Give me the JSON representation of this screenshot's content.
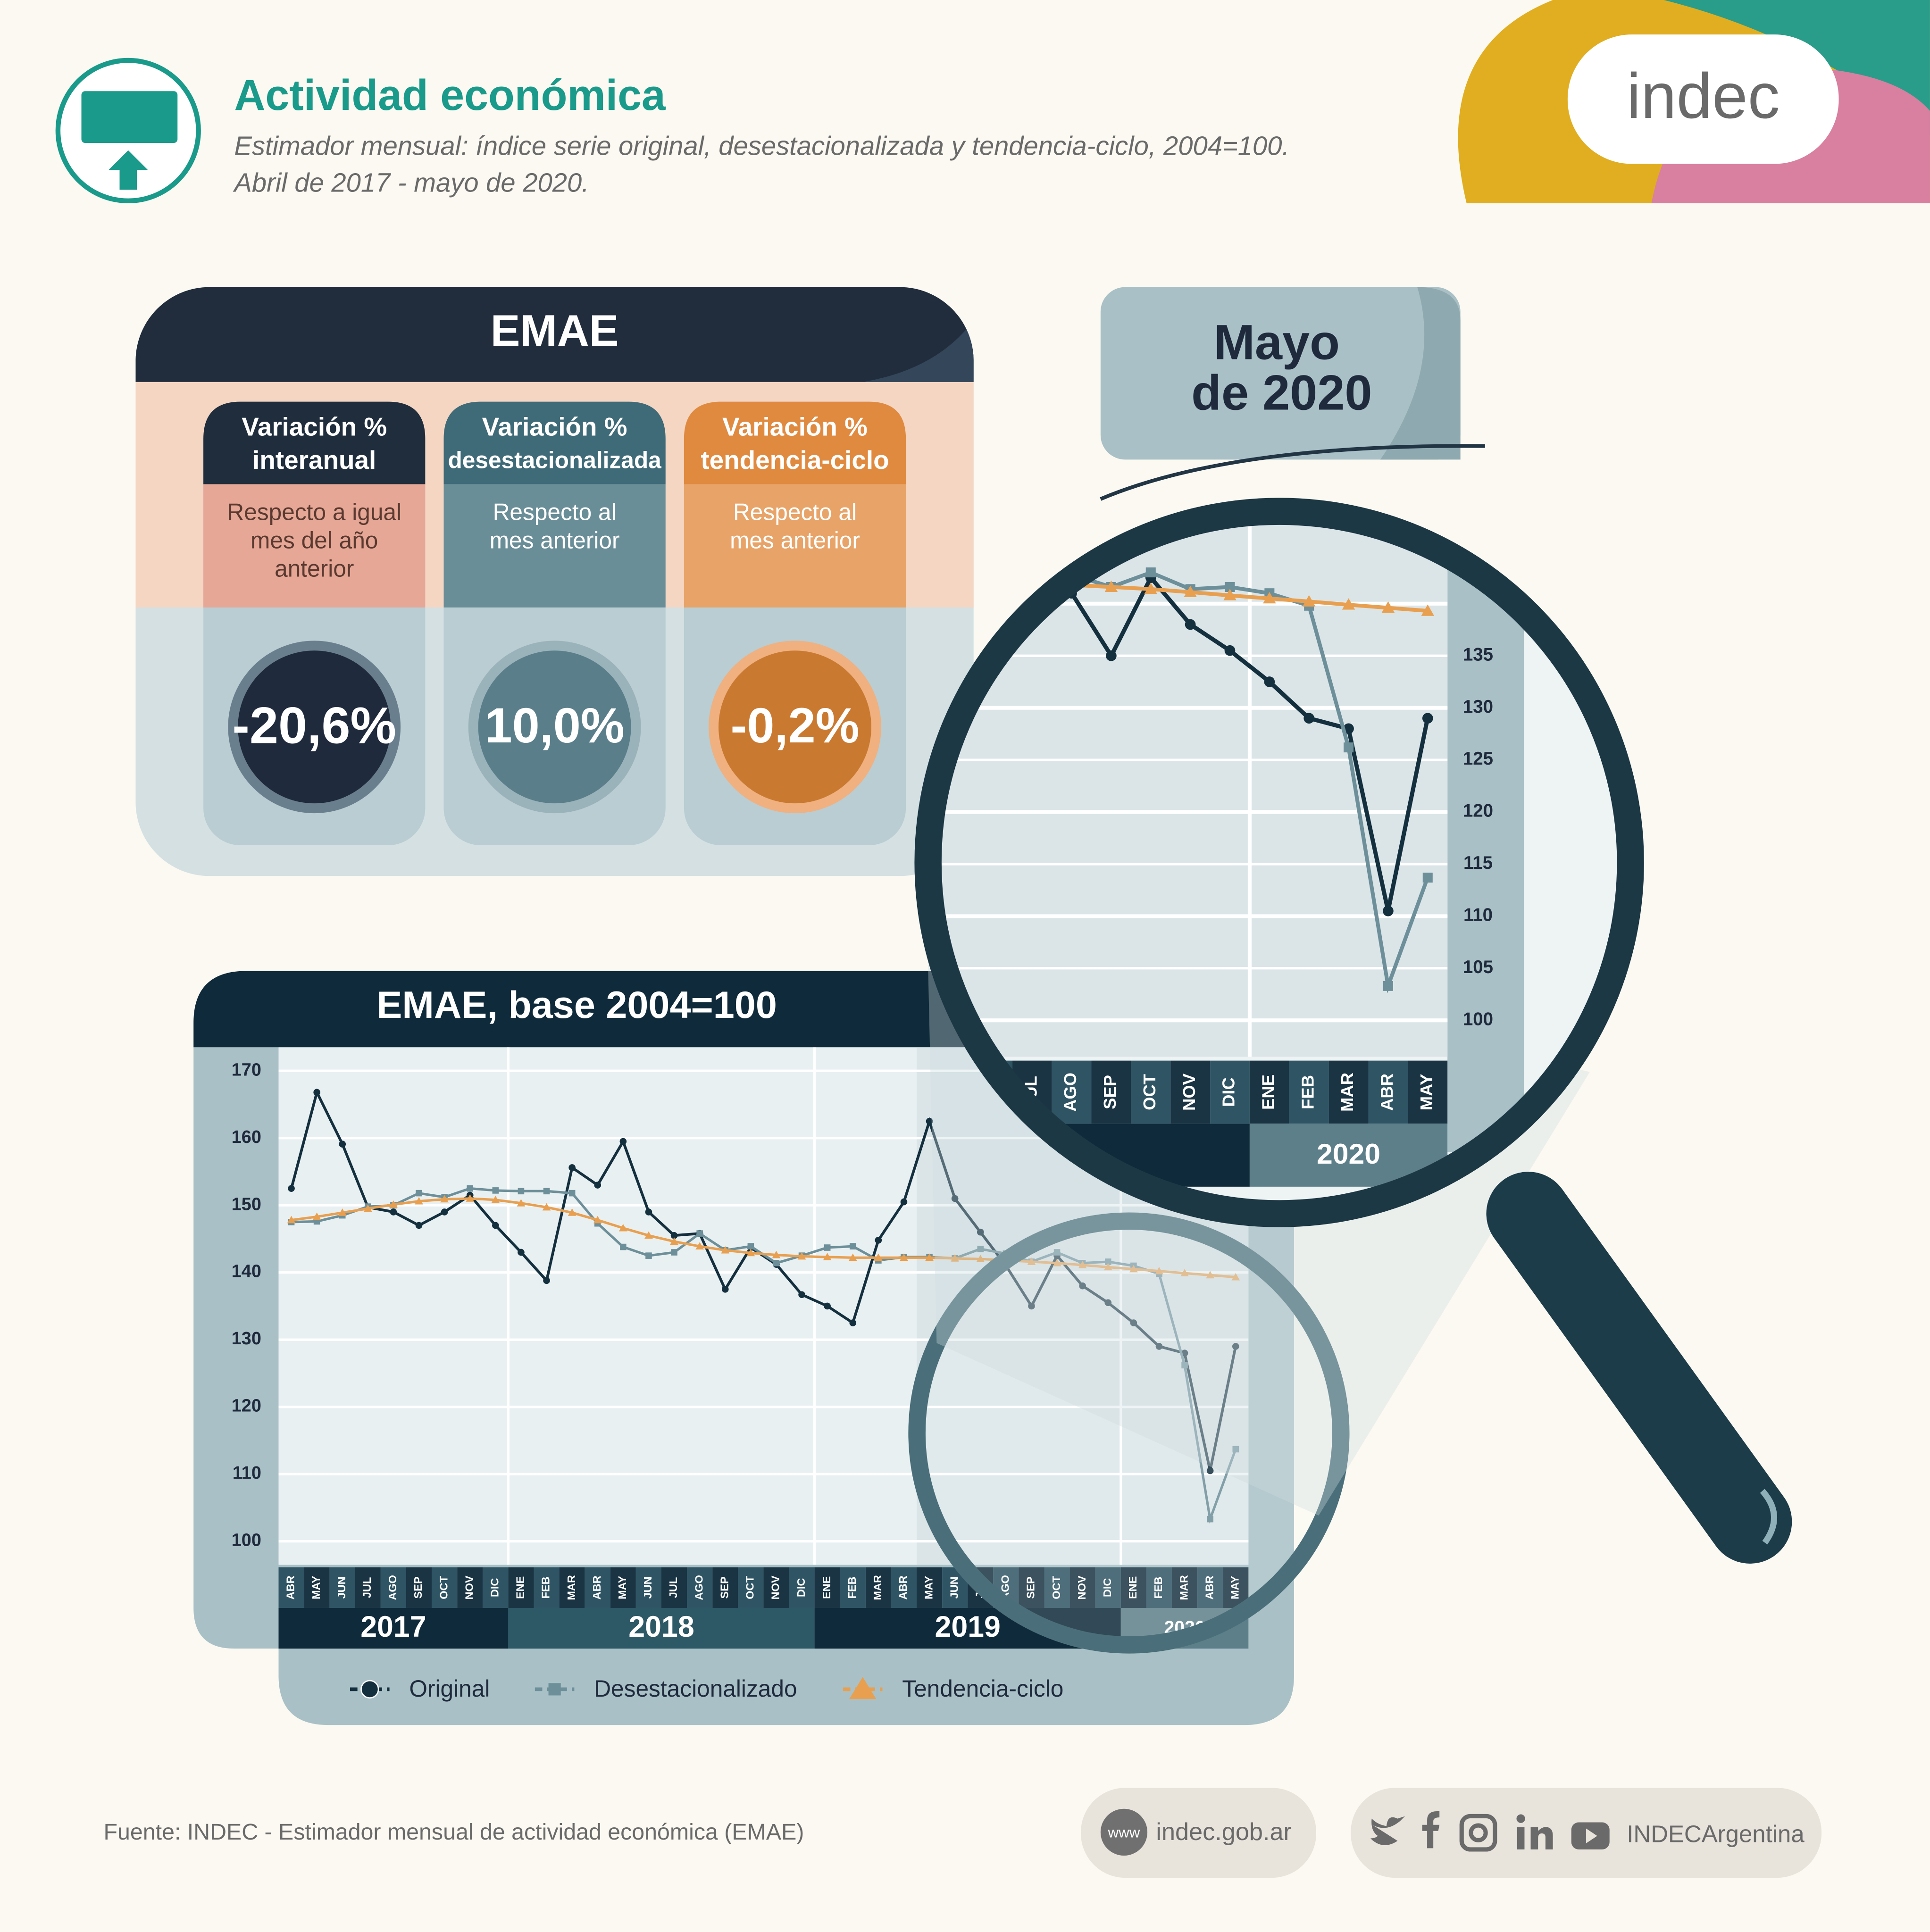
{
  "header": {
    "title": "Actividad económica",
    "subtitle": [
      "Estimador mensual: índice serie original, desestacionalizada y tendencia-ciclo, 2004=100.",
      "Abril de 2017 - mayo de 2020."
    ],
    "logo": "indec"
  },
  "summary": {
    "title": "EMAE",
    "cards": [
      {
        "title": [
          "Variación %",
          "interanual"
        ],
        "note": [
          "Respecto a igual",
          "mes del año",
          "anterior"
        ],
        "value": "-20,6%"
      },
      {
        "title": [
          "Variación %",
          "desestacionalizada"
        ],
        "note": [
          "Respecto al",
          "mes anterior"
        ],
        "value": "10,0%"
      },
      {
        "title": [
          "Variación %",
          "tendencia-ciclo"
        ],
        "note": [
          "Respecto al",
          "mes anterior"
        ],
        "value": "-0,2%"
      }
    ]
  },
  "period": [
    "Mayo",
    "de 2020"
  ],
  "chart_data": {
    "type": "line",
    "title": "EMAE, base 2004=100",
    "categories": [
      "ABR",
      "MAY",
      "JUN",
      "JUL",
      "AGO",
      "SEP",
      "OCT",
      "NOV",
      "DIC",
      "ENE",
      "FEB",
      "MAR",
      "ABR",
      "MAY",
      "JUN",
      "JUL",
      "AGO",
      "SEP",
      "OCT",
      "NOV",
      "DIC",
      "ENE",
      "FEB",
      "MAR",
      "ABR",
      "MAY",
      "JUN",
      "JUL",
      "AGO",
      "SEP",
      "OCT",
      "NOV",
      "DIC",
      "ENE",
      "FEB",
      "MAR",
      "ABR",
      "MAY"
    ],
    "year_groups": [
      {
        "name": "2017",
        "count": 9
      },
      {
        "name": "2018",
        "count": 12
      },
      {
        "name": "2019",
        "count": 12
      },
      {
        "name": "2020",
        "count": 5
      }
    ],
    "series": [
      {
        "name": "Original",
        "color": "#14303f",
        "marker": "circle",
        "values": [
          152.5,
          166.8,
          159.1,
          149.7,
          149,
          147,
          149,
          151.5,
          147,
          143,
          138.8,
          155.6,
          153,
          159.5,
          149,
          145.5,
          145.8,
          137.5,
          143.7,
          141.2,
          136.7,
          135,
          132.5,
          144.8,
          150.5,
          162.5,
          151,
          146,
          141,
          135,
          142.5,
          138,
          135.5,
          132.5,
          129,
          128,
          110.5,
          129
        ]
      },
      {
        "name": "Desestacionalizado",
        "color": "#6d8f99",
        "marker": "square",
        "values": [
          147.5,
          147.6,
          148.5,
          149.8,
          150,
          151.8,
          151.2,
          152.5,
          152.2,
          152.1,
          152.1,
          151.8,
          147.3,
          143.8,
          142.5,
          143,
          145.8,
          143.3,
          143.9,
          141.4,
          142.5,
          143.7,
          143.9,
          141.8,
          142.3,
          142.3,
          142.1,
          143.5,
          142.8,
          141.6,
          143,
          141.4,
          141.6,
          141,
          139.8,
          126.2,
          103.3,
          113.7
        ]
      },
      {
        "name": "Tendencia-ciclo",
        "color": "#e8a050",
        "marker": "triangle",
        "values": [
          147.8,
          148.3,
          148.9,
          149.5,
          150.1,
          150.6,
          150.9,
          151,
          150.8,
          150.3,
          149.7,
          148.9,
          147.8,
          146.6,
          145.5,
          144.6,
          143.9,
          143.3,
          142.9,
          142.6,
          142.4,
          142.3,
          142.2,
          142.2,
          142.2,
          142.2,
          142.1,
          142,
          141.8,
          141.6,
          141.4,
          141.1,
          140.8,
          140.5,
          140.2,
          139.9,
          139.6,
          139.3
        ]
      }
    ],
    "ylim": [
      96.5,
      173.5
    ],
    "yticks": [
      100,
      110,
      120,
      130,
      140,
      150,
      160,
      170
    ],
    "grid": true,
    "zoom": {
      "yticks": [
        100,
        105,
        110,
        115,
        120,
        125,
        130,
        135
      ]
    }
  },
  "footer": {
    "source": "Fuente: INDEC - Estimador mensual de actividad económica (EMAE)",
    "web_icon": "www",
    "web": "indec.gob.ar",
    "social": "INDECArgentina"
  }
}
